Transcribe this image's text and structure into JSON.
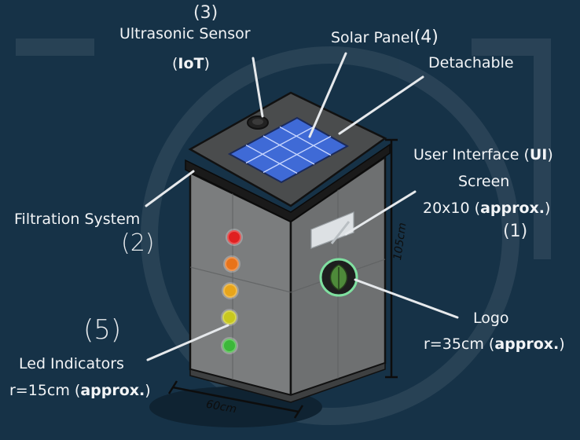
{
  "labels": {
    "ultrasonic": {
      "number": "(3)",
      "line1": "Ultrasonic Sensor",
      "line2_open": "(",
      "line2_bold": "IoT",
      "line2_close": ")"
    },
    "solar": {
      "title": "Solar Panel",
      "number": "(4)",
      "sub": "Detachable"
    },
    "ui": {
      "line1_pre": "User Interface (",
      "line1_bold": "UI",
      "line1_post": ")",
      "line2": "Screen",
      "line3_pre": "20x10 (",
      "line3_bold": "approx.",
      "line3_post": ")",
      "number": "(1)"
    },
    "filtration": {
      "title": "Filtration System",
      "number": "(2)"
    },
    "logo": {
      "title": "Logo",
      "line2_pre": "r=35cm (",
      "line2_bold": "approx.",
      "line2_post": ")"
    },
    "led": {
      "number": "(5)",
      "title": "Led Indicators",
      "line2_pre": "r=15cm (",
      "line2_bold": "approx.",
      "line2_post": ")"
    },
    "height_dim": "105cm",
    "width_dim": "60cm"
  },
  "colors": {
    "background": "#163247",
    "body_front": "#7d7f80",
    "body_side": "#6f7172",
    "lid": "#4a4c4d",
    "solar": "#3f6ad6",
    "led_red": "#e02020",
    "led_orange": "#e8731a",
    "led_amber": "#e8a51a",
    "led_yellow": "#c8c81e",
    "led_green": "#3cb83a",
    "logo_ring": "#7fe0a0",
    "logo_leaf": "#4e8a3a"
  }
}
